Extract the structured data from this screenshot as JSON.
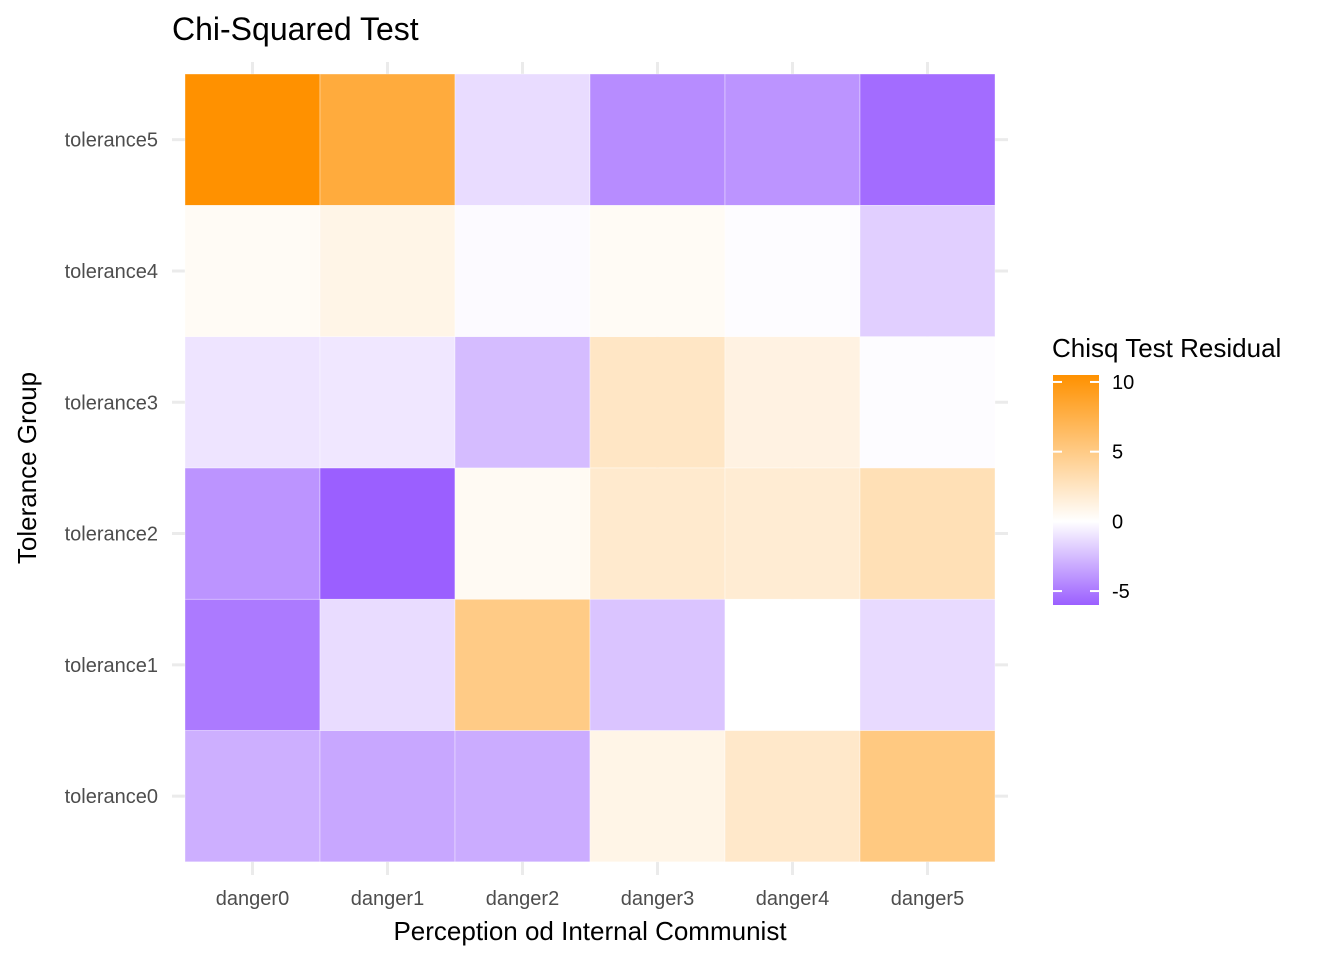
{
  "chart_data": {
    "type": "heatmap",
    "title": "Chi-Squared Test",
    "xlabel": "Perception od Internal Communist",
    "ylabel": "Tolerance Group",
    "x_categories": [
      "danger0",
      "danger1",
      "danger2",
      "danger3",
      "danger4",
      "danger5"
    ],
    "y_categories": [
      "tolerance0",
      "tolerance1",
      "tolerance2",
      "tolerance3",
      "tolerance4",
      "tolerance5"
    ],
    "values": [
      [
        -3.0,
        -3.3,
        -3.1,
        1.0,
        2.2,
        5.2
      ],
      [
        -5.0,
        -1.3,
        5.0,
        -2.2,
        0.0,
        -1.4
      ],
      [
        -4.0,
        -6.0,
        0.5,
        2.0,
        1.8,
        3.0
      ],
      [
        -1.0,
        -0.9,
        -2.5,
        2.4,
        1.2,
        -0.1
      ],
      [
        0.4,
        1.0,
        -0.2,
        0.4,
        -0.1,
        -1.8
      ],
      [
        10.5,
        8.0,
        -1.3,
        -4.3,
        -4.0,
        -5.5
      ]
    ],
    "legend": {
      "title": "Chisq Test Residual",
      "breaks": [
        10,
        5,
        0,
        -5
      ],
      "range": [
        -6,
        10.5
      ],
      "low_color": "#9b5fff",
      "mid_color": "#ffffff",
      "high_color": "#ff9100",
      "position": "right"
    },
    "grid": true
  }
}
